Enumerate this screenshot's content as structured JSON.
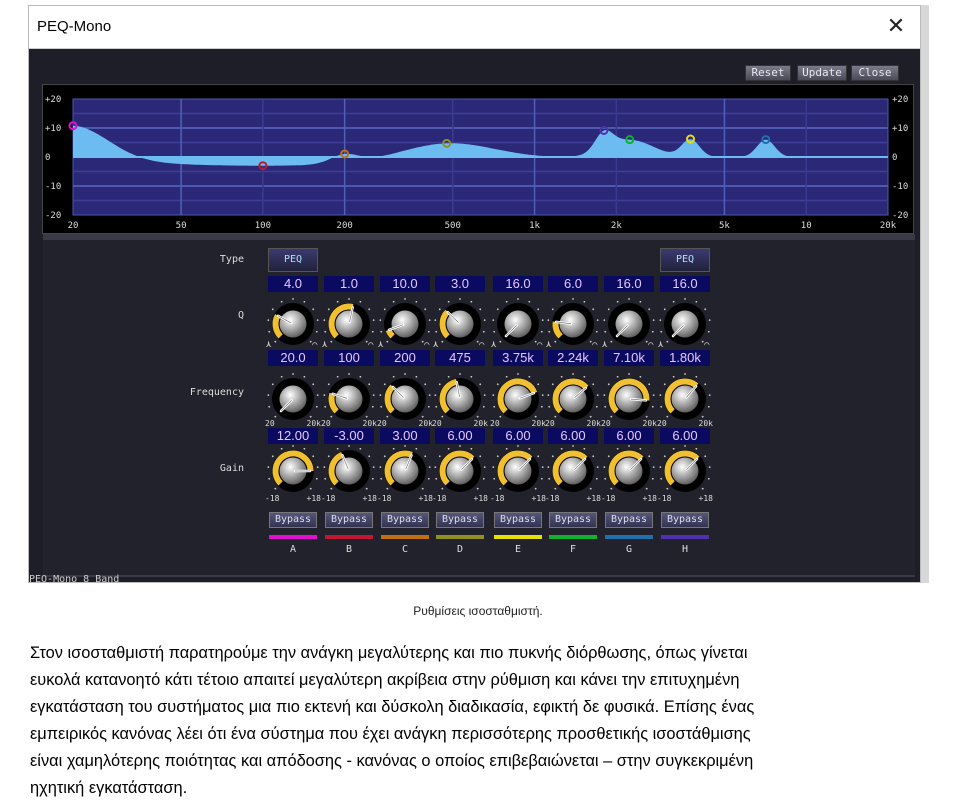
{
  "window": {
    "title": "PEQ-Mono",
    "close_icon": "close-icon",
    "status": "PEQ-Mono   8 Band"
  },
  "toolbar": {
    "reset": "Reset",
    "update": "Update",
    "close": "Close"
  },
  "graph": {
    "y_ticks": [
      "+20",
      "+10",
      "0",
      "-10",
      "-20"
    ],
    "x_ticks": [
      "20",
      "50",
      "100",
      "200",
      "500",
      "1k",
      "2k",
      "5k",
      "10",
      "20k"
    ],
    "x_tick_values": [
      20,
      50,
      100,
      200,
      500,
      1000,
      2000,
      5000,
      10000,
      20000
    ],
    "y_range_db": [
      -20,
      20
    ],
    "x_range_hz": [
      20,
      20000
    ],
    "x_scale": "log",
    "colors": {
      "plot_bg": "#2c2878",
      "grid": "#5a68c0",
      "curve_fill": "#6cbcf2"
    }
  },
  "rows": {
    "type": "Type",
    "q": "Q",
    "frequency": "Frequency",
    "gain": "Gain"
  },
  "scales": {
    "freq_min": "20",
    "freq_max": "20k",
    "gain_min": "-18",
    "gain_max": "+18"
  },
  "bands": [
    {
      "letter": "A",
      "type": "PEQ",
      "q": "4.0",
      "freq": "20.0",
      "gain": "12.00",
      "q_val": 4,
      "f_val": 20,
      "g_val": 12,
      "color": "#e010d0",
      "bypass": "Bypass"
    },
    {
      "letter": "B",
      "type": "",
      "q": "1.0",
      "freq": "100",
      "gain": "-3.00",
      "q_val": 1,
      "f_val": 100,
      "g_val": -3,
      "color": "#c01830",
      "bypass": "Bypass"
    },
    {
      "letter": "C",
      "type": "",
      "q": "10.0",
      "freq": "200",
      "gain": "3.00",
      "q_val": 10,
      "f_val": 200,
      "g_val": 3,
      "color": "#c07010",
      "bypass": "Bypass"
    },
    {
      "letter": "D",
      "type": "",
      "q": "3.0",
      "freq": "475",
      "gain": "6.00",
      "q_val": 3,
      "f_val": 475,
      "g_val": 6,
      "color": "#909020",
      "bypass": "Bypass"
    },
    {
      "letter": "E",
      "type": "",
      "q": "16.0",
      "freq": "3.75k",
      "gain": "6.00",
      "q_val": 16,
      "f_val": 3750,
      "g_val": 6,
      "color": "#e8e000",
      "bypass": "Bypass"
    },
    {
      "letter": "F",
      "type": "",
      "q": "6.0",
      "freq": "2.24k",
      "gain": "6.00",
      "q_val": 6,
      "f_val": 2240,
      "g_val": 6,
      "color": "#10b030",
      "bypass": "Bypass"
    },
    {
      "letter": "G",
      "type": "",
      "q": "16.0",
      "freq": "7.10k",
      "gain": "6.00",
      "q_val": 16,
      "f_val": 7100,
      "g_val": 6,
      "color": "#2070b0",
      "bypass": "Bypass"
    },
    {
      "letter": "H",
      "type": "PEQ",
      "q": "16.0",
      "freq": "1.80k",
      "gain": "6.00",
      "q_val": 16,
      "f_val": 1800,
      "g_val": 6,
      "color": "#5030b0",
      "bypass": "Bypass"
    }
  ],
  "caption": "Ρυθμίσεις ισοσταθμιστή.",
  "paragraph": [
    "Στον ισοσταθμιστή παρατηρούμε την ανάγκη μεγαλύτερης και πιο πυκνής διόρθωσης, όπως γίνεται",
    "ευκολά κατανοητό κάτι τέτοιο απαιτεί μεγαλύτερη ακρίβεια στην ρύθμιση και κάνει την επιτυχημένη",
    "εγκατάσταση του συστήματος μια πιο εκτενή και δύσκολη διαδικασία, εφικτή δε φυσικά.  Επίσης ένας",
    "εμπειρικός κανόνας λέει ότι ένα σύστημα που έχει ανάγκη περισσότερης προσθετικής ισοστάθμισης",
    "είναι χαμηλότερης ποιότητας και απόδοσης - κανόνας ο οποίος επιβεβαιώνεται – στην συγκεκριμένη",
    "ηχητική εγκατάσταση."
  ]
}
